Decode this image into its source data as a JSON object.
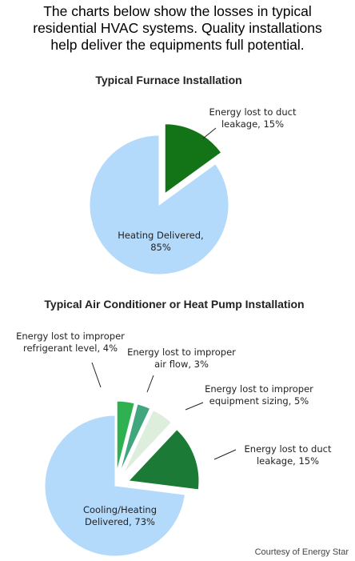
{
  "intro": {
    "lines": [
      "The charts below show the losses in typical",
      "residential HVAC systems.  Quality installations",
      "help deliver the equipments full potential."
    ]
  },
  "credit": "Courtesy of Energy Star",
  "chart_data": [
    {
      "type": "pie",
      "title": "Typical Furnace Installation",
      "slices": [
        {
          "label_lines": [
            "Heating Delivered,",
            "85%"
          ],
          "value": 85,
          "color": "#b3d9fb",
          "exploded": false
        },
        {
          "label_lines": [
            "Energy lost to duct",
            "leakage, 15%"
          ],
          "value": 15,
          "color": "#137317",
          "exploded": true
        }
      ]
    },
    {
      "type": "pie",
      "title": "Typical Air Conditioner or Heat Pump Installation",
      "slices": [
        {
          "label_lines": [
            "Cooling/Heating",
            "Delivered, 73%"
          ],
          "value": 73,
          "color": "#b3d9fb",
          "exploded": false
        },
        {
          "label_lines": [
            "Energy lost to improper",
            "refrigerant level, 4%"
          ],
          "value": 4,
          "color": "#2fb152",
          "exploded": true
        },
        {
          "label_lines": [
            "Energy lost to improper",
            "air flow, 3%"
          ],
          "value": 3,
          "color": "#41a57e",
          "exploded": true
        },
        {
          "label_lines": [
            "Energy lost to improper",
            "equipment sizing, 5%"
          ],
          "value": 5,
          "color": "#deeedc",
          "exploded": true
        },
        {
          "label_lines": [
            "Energy lost to duct",
            "leakage, 15%"
          ],
          "value": 15,
          "color": "#1a7a36",
          "exploded": true
        }
      ]
    }
  ]
}
